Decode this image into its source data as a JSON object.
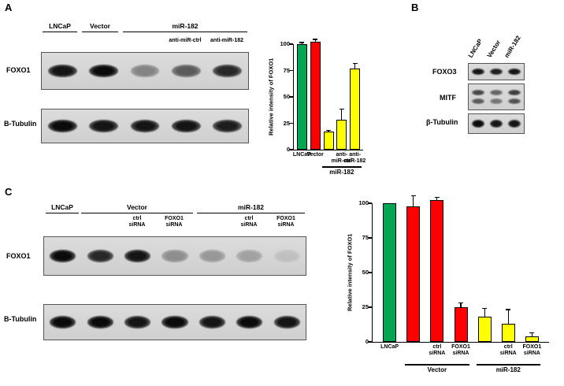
{
  "figure": {
    "panel_a": {
      "label": "A",
      "lane_groups": [
        {
          "label": "LNCaP"
        },
        {
          "label": "Vector"
        },
        {
          "label": "miR-182"
        }
      ],
      "sub_lane_labels": [
        "anti-miR-ctrl",
        "anti-miR-182"
      ],
      "blots": [
        {
          "label": "FOXO1",
          "bands": [
            0.95,
            1,
            0.4,
            0.6,
            0.85
          ],
          "doublet": false
        },
        {
          "label": "B-Tubulin",
          "bands": [
            1,
            0.95,
            0.95,
            0.95,
            0.9
          ],
          "doublet": false
        }
      ]
    },
    "panel_b": {
      "label": "B",
      "lanes": [
        "LNCaP",
        "Vector",
        "miR-182"
      ],
      "blots": [
        {
          "label": "FOXO3",
          "bands": [
            0.95,
            0.9,
            0.95
          ],
          "doublet": false
        },
        {
          "label": "MITF",
          "bands": [
            0.7,
            0.55,
            0.75
          ],
          "doublet": true
        },
        {
          "label": "β-Tubulin",
          "bands": [
            1,
            0.95,
            0.95
          ],
          "doublet": false
        }
      ]
    },
    "panel_c": {
      "label": "C",
      "lane_groups": [
        {
          "label": "LNCaP"
        },
        {
          "label": "Vector"
        },
        {
          "label": "miR-182"
        }
      ],
      "sub_lane_labels": [
        "ctrl\nsiRNA",
        "FOXO1\nsiRNA",
        "ctrl\nsiRNA",
        "FOXO1\nsiRNA"
      ],
      "blots": [
        {
          "label": "FOXO1",
          "bands": [
            1,
            0.85,
            0.95,
            0.35,
            0.3,
            0.25,
            0.1
          ],
          "doublet": false
        },
        {
          "label": "B-Tubulin",
          "bands": [
            1,
            1,
            0.95,
            1,
            0.95,
            1,
            0.95
          ],
          "doublet": false
        }
      ]
    }
  },
  "chart_data": [
    {
      "type": "bar",
      "title": "",
      "ylabel": "Relative intensity of FOXO1",
      "xlabel": "",
      "ylim": [
        0,
        100
      ],
      "yticks": [
        0,
        25,
        50,
        75,
        100
      ],
      "categories": [
        "LNCaP",
        "Vector",
        "",
        "anti-\nmiR-ctrl",
        "anti-\nmiR-182"
      ],
      "values": [
        100,
        102,
        17,
        28,
        77
      ],
      "errors": [
        1,
        2,
        1,
        10,
        4
      ],
      "colors": [
        "#00a651",
        "#fe0000",
        "#ffff00",
        "#ffff00",
        "#ffff00"
      ],
      "groups": [
        {
          "label": "miR-182",
          "from": 2,
          "to": 4
        }
      ],
      "grid": false,
      "legend": "none"
    },
    {
      "type": "bar",
      "title": "",
      "ylabel": "Relative intensity of FOXO1",
      "xlabel": "",
      "ylim": [
        0,
        100
      ],
      "yticks": [
        0,
        25,
        50,
        75,
        100
      ],
      "categories": [
        "LNCaP",
        "",
        "ctrl\nsiRNA",
        "FOXO1\nsiRNA",
        "",
        "ctrl\nsiRNA",
        "FOXO1\nsiRNA"
      ],
      "values": [
        100,
        98,
        102,
        25,
        18,
        13,
        4
      ],
      "errors": [
        0,
        7,
        2,
        3,
        6,
        10,
        2
      ],
      "colors": [
        "#00a651",
        "#fe0000",
        "#fe0000",
        "#fe0000",
        "#ffff00",
        "#ffff00",
        "#ffff00"
      ],
      "groups": [
        {
          "label": "Vector",
          "from": 1,
          "to": 3
        },
        {
          "label": "miR-182",
          "from": 4,
          "to": 6
        }
      ],
      "grid": false,
      "legend": "none"
    }
  ]
}
